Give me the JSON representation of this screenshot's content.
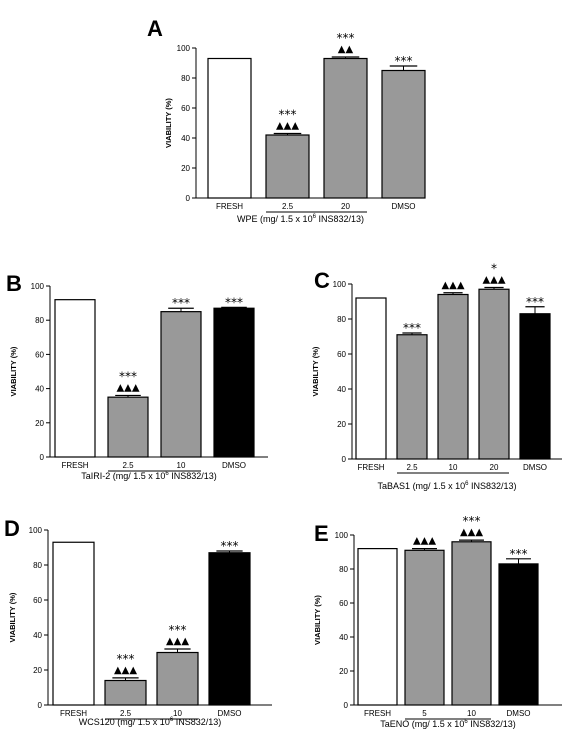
{
  "colors": {
    "fresh": "#ffffff",
    "treatment": "#999999",
    "dmso": "#000000",
    "axis": "#000000"
  },
  "chart_data": [
    {
      "panel": "A",
      "type": "bar",
      "ylabel": "VIABILITY (%)",
      "ylim": [
        0,
        100
      ],
      "yticks": [
        0,
        20,
        40,
        60,
        80,
        100
      ],
      "categories": [
        "FRESH",
        "2.5",
        "20",
        "DMSO"
      ],
      "values": [
        93,
        42,
        93,
        85
      ],
      "errors": [
        0,
        1,
        1,
        3
      ],
      "fills": [
        "fresh",
        "treatment",
        "treatment",
        "dmso-white"
      ],
      "stars": [
        "",
        "***",
        "***",
        "***"
      ],
      "triangles": [
        "",
        "▲▲▲",
        "▲▲",
        ""
      ],
      "underline": [
        1,
        2
      ],
      "xtitle": {
        "prefix": "WPE",
        "pre": "(mg/ 1.5 x 10",
        "sup": "6",
        "post": "INS832/13)"
      }
    },
    {
      "panel": "B",
      "type": "bar",
      "ylabel": "VIABILITY (%)",
      "ylim": [
        0,
        100
      ],
      "yticks": [
        0,
        20,
        40,
        60,
        80,
        100
      ],
      "categories": [
        "FRESH",
        "2.5",
        "10",
        "DMSO"
      ],
      "values": [
        92,
        35,
        85,
        87
      ],
      "errors": [
        0,
        1,
        2,
        0.5
      ],
      "fills": [
        "fresh",
        "treatment",
        "treatment",
        "dmso"
      ],
      "stars": [
        "",
        "***",
        "***",
        "***"
      ],
      "triangles": [
        "",
        "▲▲▲",
        "",
        ""
      ],
      "underline": [
        1,
        2
      ],
      "xtitle": {
        "prefix": "TaIRI-2",
        "pre": "(mg/ 1.5 x 10",
        "sup": "6",
        "post": "INS832/13)"
      }
    },
    {
      "panel": "C",
      "type": "bar",
      "ylabel": "VIABILITY (%)",
      "ylim": [
        0,
        100
      ],
      "yticks": [
        0,
        20,
        40,
        60,
        80,
        100
      ],
      "categories": [
        "FRESH",
        "2.5",
        "10",
        "20",
        "DMSO"
      ],
      "values": [
        92,
        71,
        94,
        97,
        83
      ],
      "errors": [
        0,
        1,
        1,
        1,
        4
      ],
      "fills": [
        "fresh",
        "treatment",
        "treatment",
        "treatment",
        "dmso"
      ],
      "stars": [
        "",
        "***",
        "",
        "*",
        "***"
      ],
      "triangles": [
        "",
        "",
        "▲▲▲",
        "▲▲▲",
        ""
      ],
      "underline": [
        1,
        3
      ],
      "xtitle": {
        "prefix": "TaBAS1",
        "pre": "(mg/ 1.5 x 10",
        "sup": "6",
        "post": "INS832/13)"
      }
    },
    {
      "panel": "D",
      "type": "bar",
      "ylabel": "VIABILITY (%)",
      "ylim": [
        0,
        100
      ],
      "yticks": [
        0,
        20,
        40,
        60,
        80,
        100
      ],
      "categories": [
        "FRESH",
        "2.5",
        "10",
        "DMSO"
      ],
      "values": [
        93,
        14,
        30,
        87
      ],
      "errors": [
        0,
        1.5,
        2,
        1
      ],
      "fills": [
        "fresh",
        "treatment",
        "treatment",
        "dmso"
      ],
      "stars": [
        "",
        "***",
        "***",
        "***"
      ],
      "triangles": [
        "",
        "▲▲▲",
        "▲▲▲",
        ""
      ],
      "underline": [
        1,
        2
      ],
      "xtitle": {
        "prefix": "WCS120",
        "pre": "(mg/ 1.5 x 10",
        "sup": "6",
        "post": "INS832/13)"
      }
    },
    {
      "panel": "E",
      "type": "bar",
      "ylabel": "VIABILITY (%)",
      "ylim": [
        0,
        100
      ],
      "yticks": [
        0,
        20,
        40,
        60,
        80,
        100
      ],
      "categories": [
        "FRESH",
        "5",
        "10",
        "DMSO"
      ],
      "values": [
        92,
        91,
        96,
        83
      ],
      "errors": [
        0,
        1,
        1,
        3
      ],
      "fills": [
        "fresh",
        "treatment",
        "treatment",
        "dmso"
      ],
      "stars": [
        "",
        "",
        "***",
        "***"
      ],
      "triangles": [
        "",
        "▲▲▲",
        "▲▲▲",
        ""
      ],
      "underline": [
        1,
        2
      ],
      "xtitle": {
        "prefix": "TaENO",
        "pre": "(mg/ 1.5 x 10",
        "sup": "6",
        "post": "INS832/13)"
      }
    }
  ]
}
